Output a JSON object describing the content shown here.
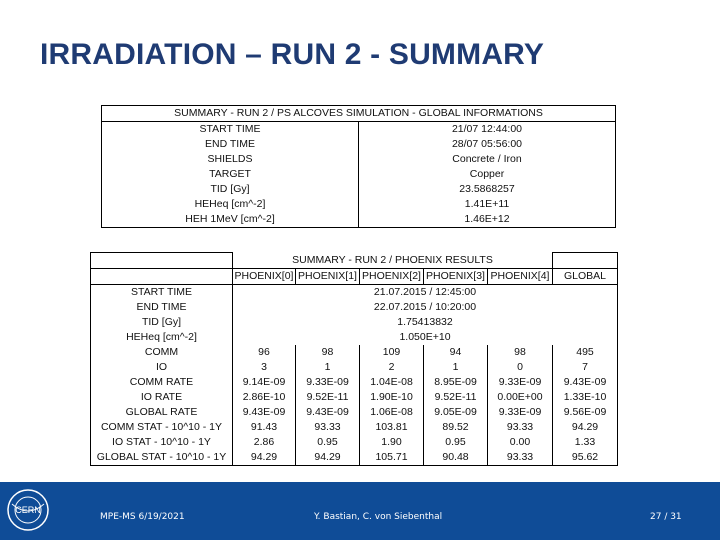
{
  "title": "IRRADIATION – RUN 2 - SUMMARY",
  "table1": {
    "header": "SUMMARY - RUN 2 / PS ALCOVES SIMULATION - GLOBAL INFORMATIONS",
    "rows": [
      {
        "label": "START TIME",
        "value": "21/07 12:44:00"
      },
      {
        "label": "END TIME",
        "value": "28/07 05:56:00"
      },
      {
        "label": "SHIELDS",
        "value": "Concrete / Iron"
      },
      {
        "label": "TARGET",
        "value": "Copper"
      },
      {
        "label": "TID [Gy]",
        "value": "23.5868257"
      },
      {
        "label": "HEHeq [cm^-2]",
        "value": "1.41E+11"
      },
      {
        "label": "HEH 1MeV [cm^-2]",
        "value": "1.46E+12"
      }
    ]
  },
  "table2": {
    "header": "SUMMARY - RUN 2 / PHOENIX RESULTS",
    "columns": [
      "PHOENIX[0]",
      "PHOENIX[1]",
      "PHOENIX[2]",
      "PHOENIX[3]",
      "PHOENIX[4]",
      "GLOBAL"
    ],
    "merged_rows": [
      {
        "label": "START TIME",
        "value": "21.07.2015 / 12:45:00"
      },
      {
        "label": "END TIME",
        "value": "22.07.2015 / 10:20:00"
      },
      {
        "label": "TID [Gy]",
        "value": "1.75413832"
      },
      {
        "label": "HEHeq [cm^-2]",
        "value": "1.050E+10"
      }
    ],
    "rows": [
      {
        "label": "COMM",
        "values": [
          "96",
          "98",
          "109",
          "94",
          "98",
          "495"
        ]
      },
      {
        "label": "IO",
        "values": [
          "3",
          "1",
          "2",
          "1",
          "0",
          "7"
        ]
      },
      {
        "label": "COMM RATE",
        "values": [
          "9.14E-09",
          "9.33E-09",
          "1.04E-08",
          "8.95E-09",
          "9.33E-09",
          "9.43E-09"
        ]
      },
      {
        "label": "IO RATE",
        "values": [
          "2.86E-10",
          "9.52E-11",
          "1.90E-10",
          "9.52E-11",
          "0.00E+00",
          "1.33E-10"
        ]
      },
      {
        "label": "GLOBAL RATE",
        "values": [
          "9.43E-09",
          "9.43E-09",
          "1.06E-08",
          "9.05E-09",
          "9.33E-09",
          "9.56E-09"
        ]
      },
      {
        "label": "COMM STAT - 10^10 - 1Y",
        "values": [
          "91.43",
          "93.33",
          "103.81",
          "89.52",
          "93.33",
          "94.29"
        ]
      },
      {
        "label": "IO STAT - 10^10 - 1Y",
        "values": [
          "2.86",
          "0.95",
          "1.90",
          "0.95",
          "0.00",
          "1.33"
        ]
      },
      {
        "label": "GLOBAL STAT - 10^10 - 1Y",
        "values": [
          "94.29",
          "94.29",
          "105.71",
          "90.48",
          "93.33",
          "95.62"
        ]
      }
    ]
  },
  "footer": {
    "logo_text": "CERN",
    "left": "MPE-MS 6/19/2021",
    "center": "Y. Bastian, C. von Siebenthal",
    "page": "27 / 31"
  },
  "colors": {
    "title": "#1f3b73",
    "footer_bg": "#0f4c97",
    "footer_text": "#ffffff"
  }
}
